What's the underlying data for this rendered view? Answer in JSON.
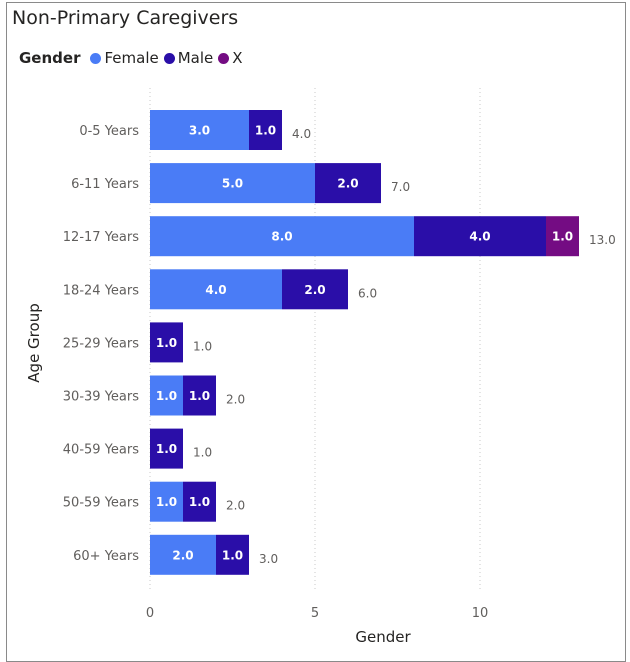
{
  "colors": {
    "Female": "#4a7cf6",
    "Male": "#2a0ea8",
    "X": "#740c83"
  },
  "legend": {
    "title": "Gender",
    "items": [
      "Female",
      "Male",
      "X"
    ]
  },
  "chart_data": {
    "type": "bar",
    "orientation": "horizontal",
    "stacked": true,
    "title": "Non-Primary Caregivers",
    "xlabel": "Gender",
    "ylabel": "Age Group",
    "xlim": [
      0,
      13.8
    ],
    "x_ticks": [
      "0",
      "5",
      "10"
    ],
    "grid": true,
    "legend_position": "top-left",
    "categories": [
      "0-5 Years",
      "6-11 Years",
      "12-17 Years",
      "18-24 Years",
      "25-29 Years",
      "30-39 Years",
      "40-59 Years",
      "50-59 Years",
      "60+ Years"
    ],
    "series": [
      {
        "name": "Female",
        "values": [
          3,
          5,
          8,
          4,
          0,
          1,
          0,
          1,
          2
        ],
        "labels": [
          "3.0",
          "5.0",
          "8.0",
          "4.0",
          "",
          "1.0",
          "",
          "1.0",
          "2.0"
        ]
      },
      {
        "name": "Male",
        "values": [
          1,
          2,
          4,
          2,
          1,
          1,
          1,
          1,
          1
        ],
        "labels": [
          "1.0",
          "2.0",
          "4.0",
          "2.0",
          "1.0",
          "1.0",
          "1.0",
          "1.0",
          "1.0"
        ]
      },
      {
        "name": "X",
        "values": [
          0,
          0,
          1,
          0,
          0,
          0,
          0,
          0,
          0
        ],
        "labels": [
          "",
          "",
          "1.0",
          "",
          "",
          "",
          "",
          "",
          ""
        ]
      }
    ],
    "totals": [
      "4.0",
      "7.0",
      "13.0",
      "6.0",
      "1.0",
      "2.0",
      "1.0",
      "2.0",
      "3.0"
    ]
  }
}
